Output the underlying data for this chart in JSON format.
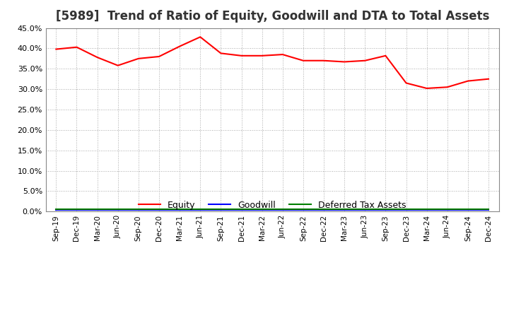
{
  "title": "[5989]  Trend of Ratio of Equity, Goodwill and DTA to Total Assets",
  "x_labels": [
    "Sep-19",
    "Dec-19",
    "Mar-20",
    "Jun-20",
    "Sep-20",
    "Dec-20",
    "Mar-21",
    "Jun-21",
    "Sep-21",
    "Dec-21",
    "Mar-22",
    "Jun-22",
    "Sep-22",
    "Dec-22",
    "Mar-23",
    "Jun-23",
    "Sep-23",
    "Dec-23",
    "Mar-24",
    "Jun-24",
    "Sep-24",
    "Dec-24"
  ],
  "equity": [
    39.8,
    40.3,
    37.8,
    35.8,
    37.5,
    38.0,
    40.5,
    42.8,
    38.8,
    38.2,
    38.2,
    38.5,
    37.0,
    37.0,
    36.7,
    37.0,
    38.2,
    31.5,
    30.2,
    30.5,
    32.0,
    32.5
  ],
  "goodwill": [
    0.3,
    0.3,
    0.3,
    0.3,
    0.3,
    0.3,
    0.3,
    0.3,
    0.3,
    0.3,
    0.3,
    0.3,
    0.3,
    0.3,
    0.3,
    0.3,
    0.3,
    0.3,
    0.3,
    0.3,
    0.3,
    0.3
  ],
  "dta": [
    0.6,
    0.6,
    0.6,
    0.6,
    0.6,
    0.6,
    0.6,
    0.6,
    0.6,
    0.6,
    0.6,
    0.6,
    0.6,
    0.6,
    0.6,
    0.6,
    0.6,
    0.6,
    0.6,
    0.6,
    0.6,
    0.6
  ],
  "equity_color": "#ff0000",
  "goodwill_color": "#0000ff",
  "dta_color": "#008000",
  "ylim": [
    0,
    45
  ],
  "yticks": [
    0,
    5,
    10,
    15,
    20,
    25,
    30,
    35,
    40,
    45
  ],
  "background_color": "#ffffff",
  "grid_color": "#aaaaaa",
  "title_fontsize": 12,
  "legend_labels": [
    "Equity",
    "Goodwill",
    "Deferred Tax Assets"
  ]
}
